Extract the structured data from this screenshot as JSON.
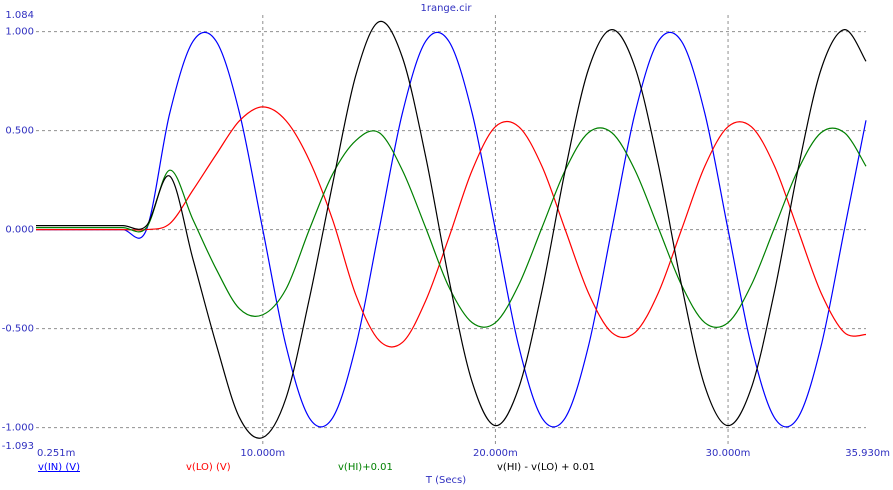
{
  "chart_data": {
    "type": "line",
    "title": "1range.cir",
    "x_label": "T (Secs)",
    "x": [
      0.251,
      1,
      2,
      3,
      4,
      5,
      6,
      7,
      8,
      9,
      10,
      11,
      12,
      13,
      14,
      15,
      16,
      17,
      18,
      19,
      20,
      21,
      22,
      23,
      24,
      25,
      26,
      27,
      28,
      29,
      30,
      31,
      32,
      33,
      34,
      35,
      35.93
    ],
    "series": [
      {
        "name": "v(IN) (V)",
        "color": "#0000ff",
        "values": [
          0,
          0,
          0,
          0,
          0,
          0,
          0.588,
          0.951,
          0.951,
          0.588,
          0,
          -0.588,
          -0.951,
          -0.951,
          -0.588,
          0,
          0.588,
          0.951,
          0.951,
          0.588,
          0,
          -0.588,
          -0.951,
          -0.951,
          -0.588,
          0,
          0.588,
          0.951,
          0.951,
          0.588,
          0,
          -0.588,
          -0.951,
          -0.951,
          -0.588,
          0,
          0.552
        ]
      },
      {
        "name": "v(LO) (V)",
        "color": "#ff0000",
        "values": [
          0,
          0,
          0,
          0,
          0,
          0,
          0.03,
          0.2,
          0.38,
          0.55,
          0.62,
          0.55,
          0.35,
          0.05,
          -0.33,
          -0.56,
          -0.57,
          -0.36,
          -0.04,
          0.3,
          0.52,
          0.52,
          0.32,
          0,
          -0.32,
          -0.52,
          -0.52,
          -0.32,
          0,
          0.32,
          0.52,
          0.52,
          0.32,
          0,
          -0.32,
          -0.52,
          -0.53
        ]
      },
      {
        "name": "v(HI)+0.01",
        "color": "#008000",
        "values": [
          0.01,
          0.01,
          0.01,
          0.01,
          0.01,
          0.01,
          0.3,
          0.05,
          -0.2,
          -0.4,
          -0.43,
          -0.3,
          0,
          0.28,
          0.45,
          0.49,
          0.3,
          0.01,
          -0.29,
          -0.47,
          -0.47,
          -0.28,
          0.01,
          0.3,
          0.49,
          0.49,
          0.3,
          0.01,
          -0.28,
          -0.47,
          -0.47,
          -0.28,
          0.01,
          0.3,
          0.49,
          0.49,
          0.32
        ]
      },
      {
        "name": "v(HI) - v(LO) + 0.01",
        "color": "#000000",
        "values": [
          0.02,
          0.02,
          0.02,
          0.02,
          0.02,
          0.02,
          0.27,
          -0.15,
          -0.58,
          -0.95,
          -1.05,
          -0.85,
          -0.35,
          0.23,
          0.78,
          1.05,
          0.87,
          0.37,
          -0.25,
          -0.77,
          -0.99,
          -0.8,
          -0.31,
          0.3,
          0.81,
          1.01,
          0.82,
          0.33,
          -0.28,
          -0.79,
          -0.99,
          -0.8,
          -0.31,
          0.3,
          0.81,
          1.01,
          0.85
        ]
      }
    ],
    "xlim": [
      0.251,
      35.93
    ],
    "xticks": [
      {
        "value": 0.251,
        "label": "0.251m"
      },
      {
        "value": 10,
        "label": "10.000m"
      },
      {
        "value": 20,
        "label": "20.000m"
      },
      {
        "value": 30,
        "label": "30.000m"
      },
      {
        "value": 35.93,
        "label": "35.930m"
      }
    ],
    "ylim": [
      -1.093,
      1.084
    ],
    "yticks": [
      {
        "value": 1.084,
        "label": "1.084"
      },
      {
        "value": 1,
        "label": "1.000"
      },
      {
        "value": 0.5,
        "label": "0.500"
      },
      {
        "value": 0,
        "label": "0.000"
      },
      {
        "value": -0.5,
        "label": "-0.500"
      },
      {
        "value": -1,
        "label": "-1.000"
      },
      {
        "value": -1.093,
        "label": "-1.093"
      }
    ],
    "grid": true
  }
}
